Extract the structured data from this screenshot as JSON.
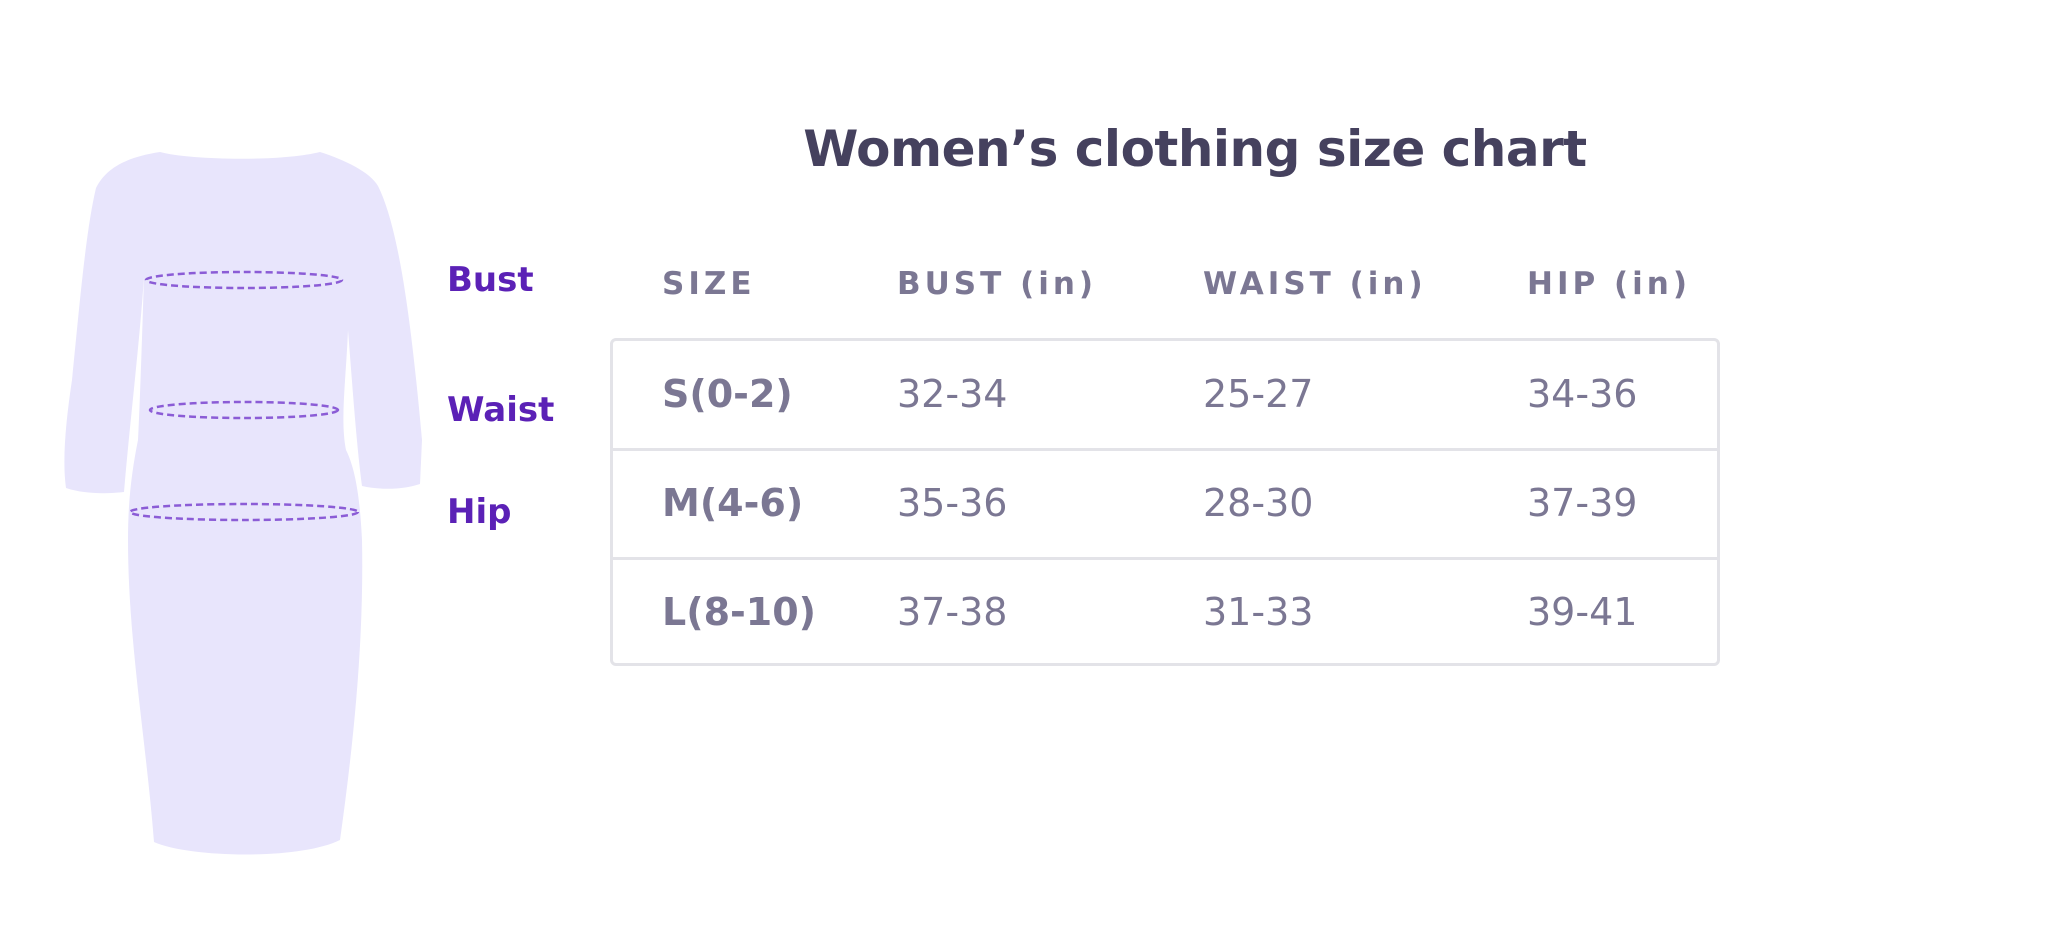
{
  "title": "Women’s clothing size chart",
  "figure": {
    "dress_icon": "dress-silhouette-icon",
    "dress_color": "#e8e5fc",
    "measure_line_color": "#8b5cd6",
    "labels": {
      "bust": "Bust",
      "waist": "Waist",
      "hip": "Hip"
    },
    "label_color": "#5b21b6"
  },
  "table": {
    "headers": [
      "SIZE",
      "BUST (in)",
      "WAIST (in)",
      "HIP (in)"
    ],
    "rows": [
      [
        "S(0-2)",
        "32-34",
        "25-27",
        "34-36"
      ],
      [
        "M(4-6)",
        "35-36",
        "28-30",
        "37-39"
      ],
      [
        "L(8-10)",
        "37-38",
        "31-33",
        "39-41"
      ]
    ]
  },
  "colors": {
    "title": "#45415e",
    "text": "#7b7793",
    "border": "#e3e3e8"
  }
}
